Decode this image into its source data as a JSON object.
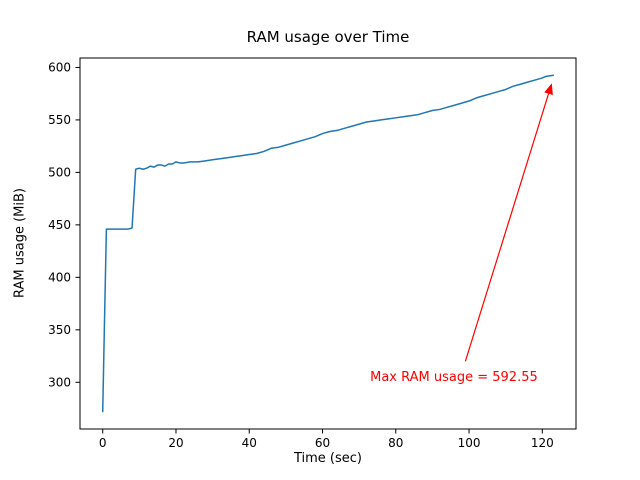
{
  "figure": {
    "title": "RAM usage over Time"
  },
  "chart_data": {
    "type": "line",
    "title": "RAM usage over Time",
    "xlabel": "Time (sec)",
    "ylabel": "RAM usage (MiB)",
    "xlim": [
      -6.2,
      129.2
    ],
    "ylim": [
      255.5,
      609.0
    ],
    "xticks": [
      0,
      20,
      40,
      60,
      80,
      100,
      120
    ],
    "yticks": [
      300,
      350,
      400,
      450,
      500,
      550,
      600
    ],
    "grid": false,
    "legend": "none",
    "line_color": "#1f77b4",
    "line_width": 1.5,
    "x": [
      0,
      0.5,
      1,
      2,
      3,
      4,
      5,
      6,
      7,
      8,
      9,
      10,
      11,
      12,
      13,
      14,
      15,
      16,
      17,
      18,
      19,
      20,
      21,
      22,
      24,
      26,
      28,
      30,
      32,
      34,
      36,
      38,
      40,
      42,
      44,
      46,
      48,
      50,
      52,
      54,
      56,
      58,
      60,
      62,
      64,
      66,
      68,
      70,
      72,
      74,
      76,
      78,
      80,
      82,
      84,
      86,
      88,
      90,
      92,
      94,
      96,
      98,
      100,
      102,
      104,
      106,
      108,
      110,
      112,
      114,
      116,
      118,
      120,
      121,
      122,
      123
    ],
    "y": [
      272,
      360,
      446,
      446,
      446,
      446,
      446,
      446,
      446,
      447,
      503,
      504,
      503,
      504,
      506,
      505,
      507,
      507,
      506,
      508,
      508,
      510,
      509,
      509,
      510,
      510,
      511,
      512,
      513,
      514,
      515,
      516,
      517,
      518,
      520,
      523,
      524,
      526,
      528,
      530,
      532,
      534,
      537,
      539,
      540,
      542,
      544,
      546,
      548,
      549,
      550,
      551,
      552,
      553,
      554,
      555,
      557,
      559,
      560,
      562,
      564,
      566,
      568,
      571,
      573,
      575,
      577,
      579,
      582,
      584,
      586,
      588,
      590,
      591.5,
      592,
      592.55
    ],
    "max_value": 592.55,
    "annotation": {
      "text": "Max RAM usage = 592.55",
      "color": "#ff0000",
      "text_xy": [
        73,
        312
      ],
      "arrow_tail_xy": [
        99,
        320
      ],
      "arrow_head_xy": [
        122.6,
        585
      ]
    }
  }
}
